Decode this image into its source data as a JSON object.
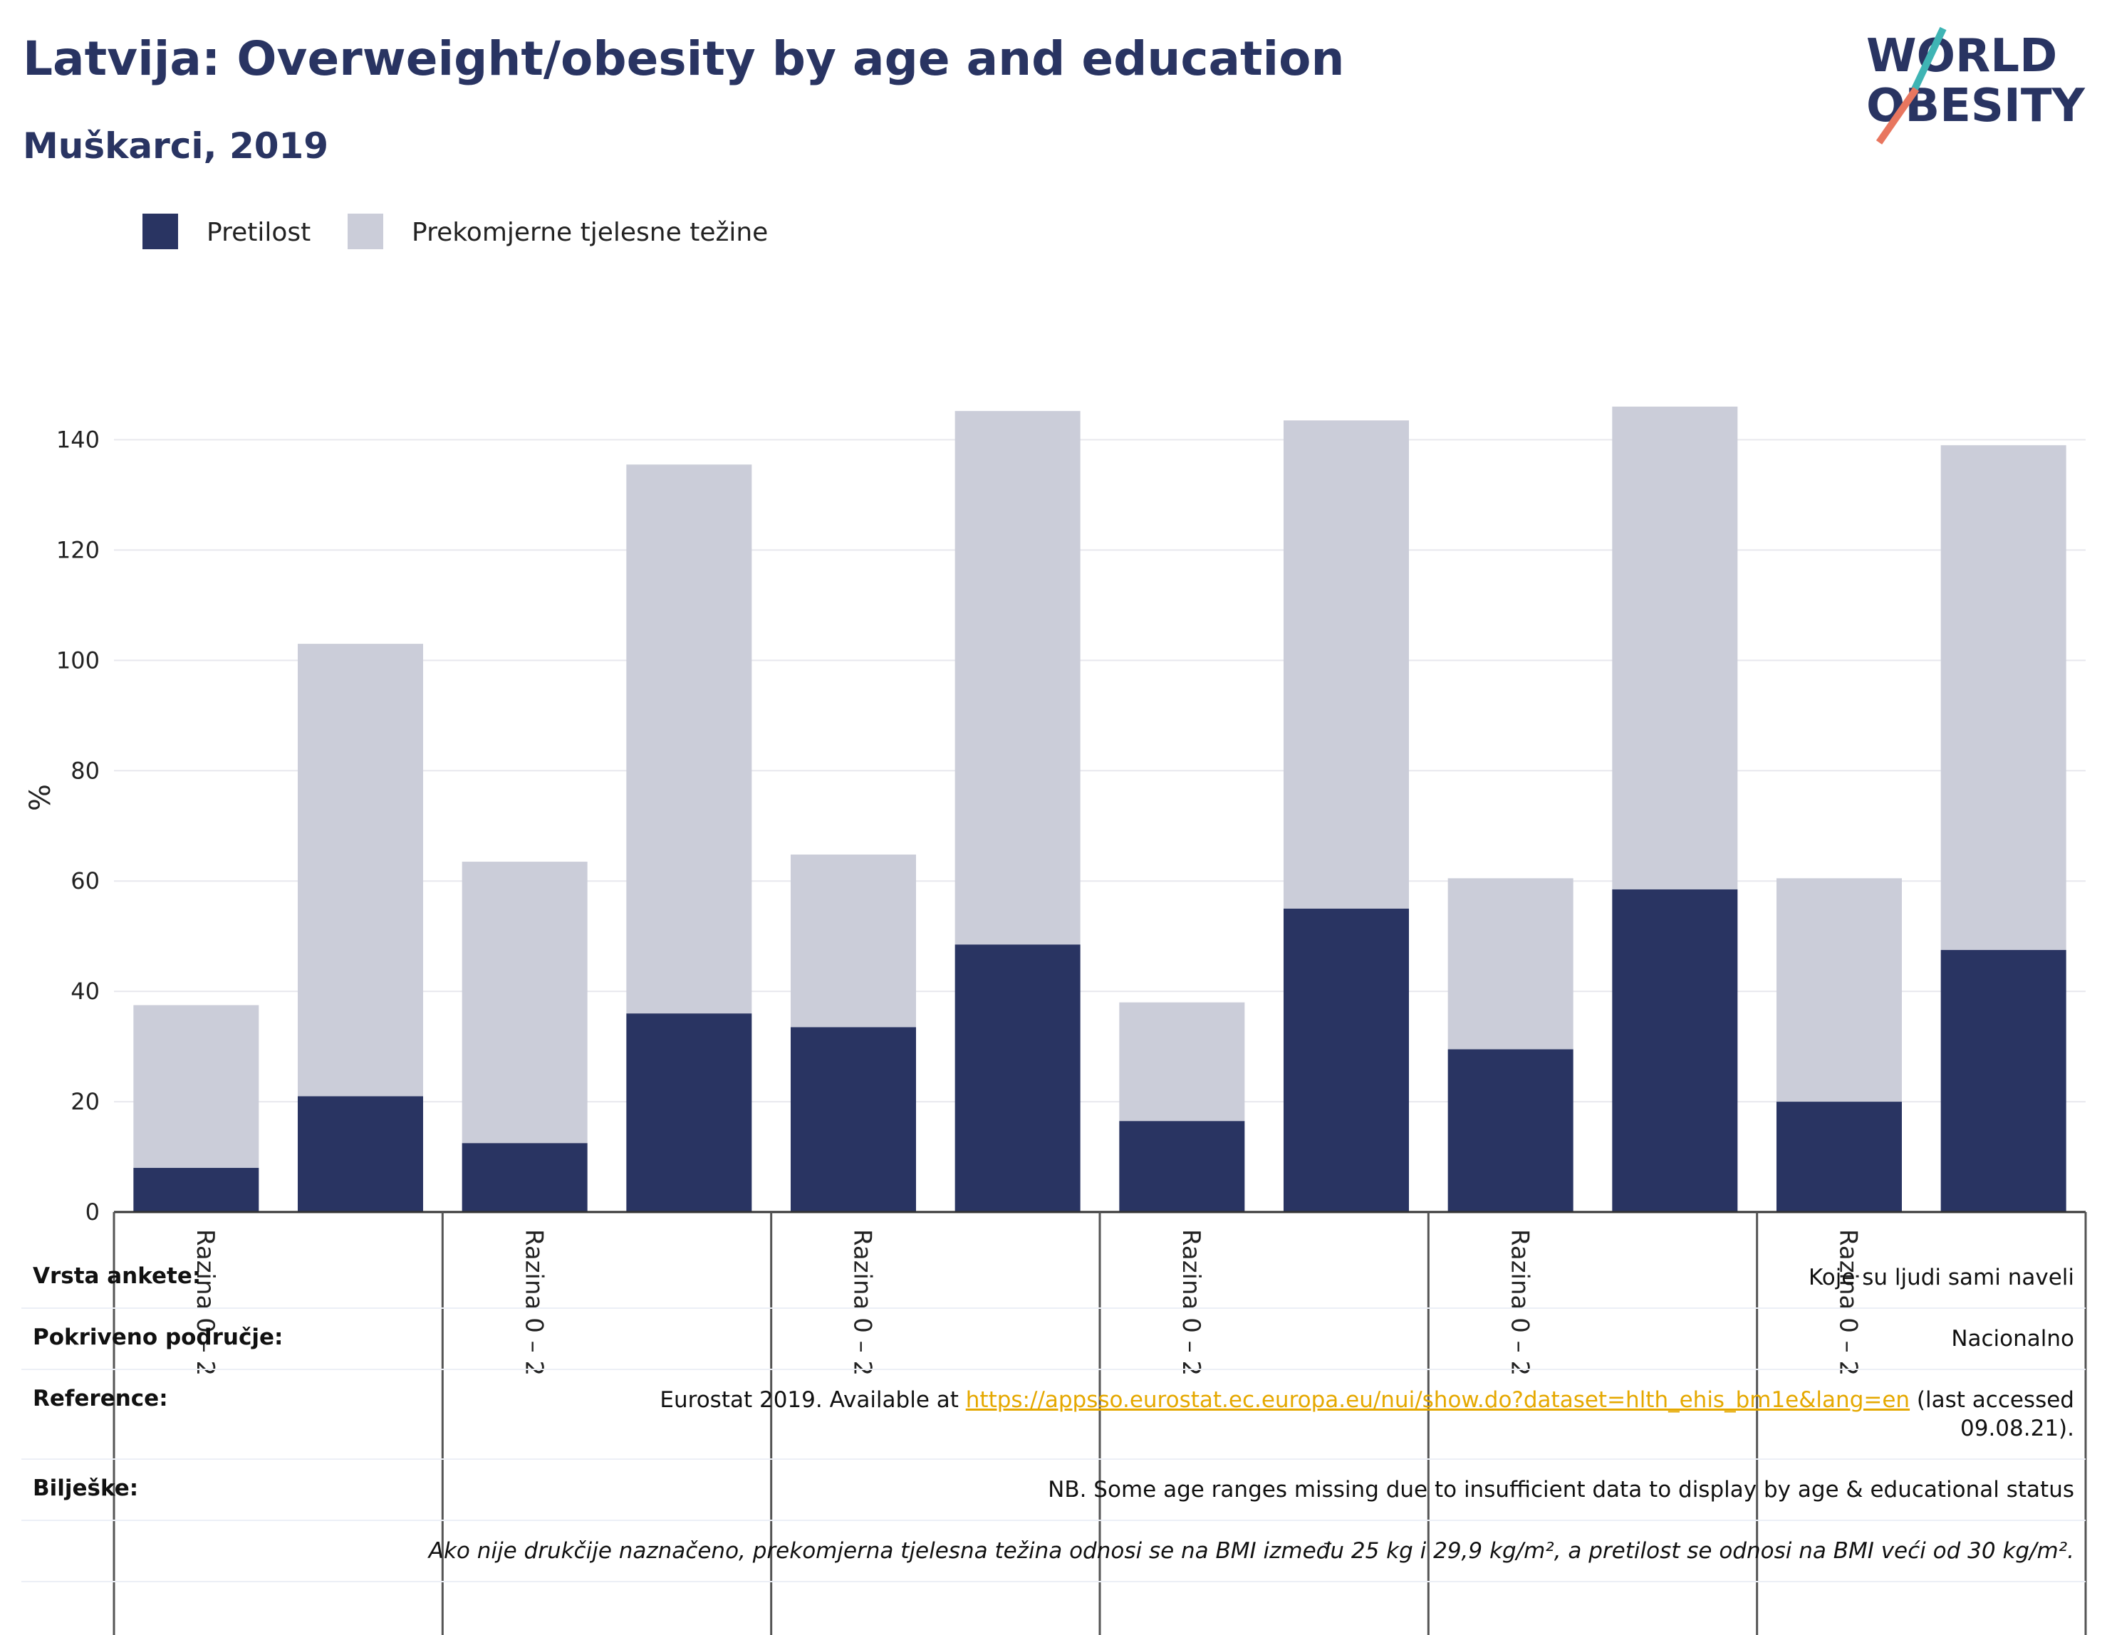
{
  "header": {
    "title": "Latvija: Overweight/obesity by age and education",
    "subtitle": "Muškarci, 2019"
  },
  "logo": {
    "line1": "WORLD",
    "line2": "OBESITY"
  },
  "colors": {
    "obesity": "#293462",
    "overweight": "#cbcdd9",
    "grid": "#e8e8ee",
    "axis": "#333333"
  },
  "chart_data": {
    "type": "bar",
    "stacked": true,
    "ylabel": "%",
    "ylim": [
      0,
      150
    ],
    "yticks": [
      0,
      20,
      40,
      60,
      80,
      100,
      120,
      140
    ],
    "grid": true,
    "legend_position": "top-left",
    "group_labels": [
      "Razina 0 – 2",
      "Razina 0 – 2",
      "Razina 0 – 2",
      "Razina 0 – 2",
      "Razina 0 – 2",
      "Razina 0 – 2"
    ],
    "series": [
      {
        "name": "Pretilost",
        "color": "#293462",
        "values": [
          8,
          21,
          12.5,
          36,
          33.5,
          48.5,
          16.5,
          55,
          29.5,
          58.5,
          20,
          47.5
        ]
      },
      {
        "name": "Prekomjerne tjelesne težine",
        "color": "#cbcdd9",
        "values": [
          29.5,
          82,
          51,
          99.5,
          31.3,
          96.7,
          21.5,
          88.5,
          31,
          87.5,
          40.5,
          91.5
        ]
      }
    ]
  },
  "notes": [
    {
      "key": "Vrsta ankete:",
      "value": "Koje su ljudi sami naveli"
    },
    {
      "key": "Pokriveno područje:",
      "value": "Nacionalno"
    },
    {
      "key": "Reference:",
      "value_prefix": "Eurostat 2019. Available at ",
      "link": "https://appsso.eurostat.ec.europa.eu/nui/show.do?dataset=hlth_ehis_bm1e&lang=en",
      "value_suffix": " (last accessed",
      "value_line2": "09.08.21)."
    },
    {
      "key": "Bilješke:",
      "value": "NB. Some age ranges missing due to insufficient data to display by age & educational status"
    },
    {
      "key": "",
      "value": "Ako nije drukčije naznačeno, prekomjerna tjelesna težina odnosi se na BMI između 25 kg i 29,9 kg/m², a pretilost se odnosi na BMI veći od 30 kg/m²."
    }
  ]
}
